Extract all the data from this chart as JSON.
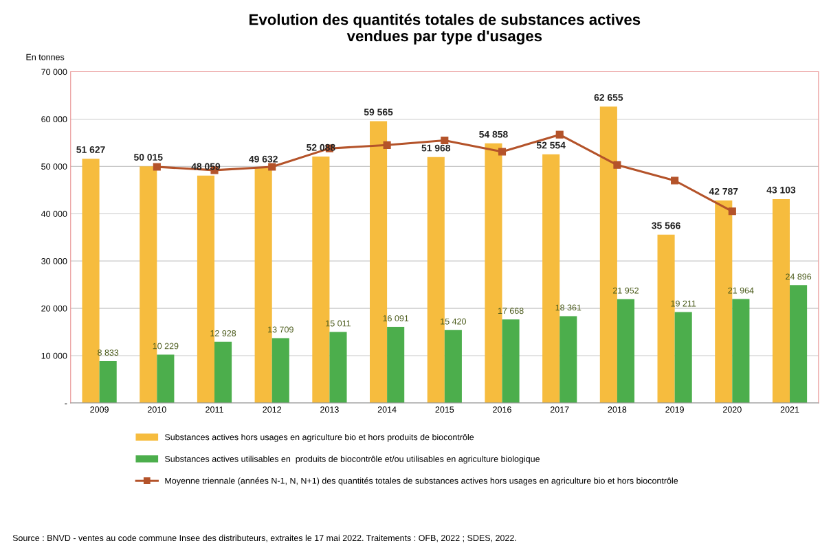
{
  "chart_data": {
    "type": "bar",
    "title": "Evolution des quantités totales de substances actives\nvendues par type d'usages",
    "ylabel": "En tonnes",
    "categories": [
      "2009",
      "2010",
      "2011",
      "2012",
      "2013",
      "2014",
      "2015",
      "2016",
      "2017",
      "2018",
      "2019",
      "2020",
      "2021"
    ],
    "series": [
      {
        "name": "Substances actives hors usages en agriculture bio et hors produits de biocontrôle",
        "color": "#f6bc3e",
        "values": [
          51627,
          50015,
          48059,
          49632,
          52088,
          59565,
          51968,
          54858,
          52554,
          62655,
          35566,
          42787,
          43103
        ],
        "value_labels": [
          "51 627",
          "50 015",
          "48 059",
          "49 632",
          "52 088",
          "59 565",
          "51 968",
          "54 858",
          "52 554",
          "62 655",
          "35 566",
          "42 787",
          "43 103"
        ]
      },
      {
        "name": "Substances actives utilisables en  produits de biocontrôle et/ou utilisables en agriculture biologique",
        "color": "#4cae4c",
        "values": [
          8833,
          10229,
          12928,
          13709,
          15011,
          16091,
          15420,
          17668,
          18361,
          21952,
          19211,
          21964,
          24896
        ],
        "value_labels": [
          "8 833",
          "10 229",
          "12 928",
          "13 709",
          "15 011",
          "16 091",
          "15 420",
          "17 668",
          "18 361",
          "21 952",
          "19 211",
          "21 964",
          "24 896"
        ]
      },
      {
        "name": "Moyenne triennale (années N-1, N, N+1) des quantités totales de substances actives hors usages en agriculture bio et hors biocontrôle",
        "type": "line",
        "color": "#b4532a",
        "marker": "square",
        "values": [
          null,
          49900,
          49200,
          49900,
          53800,
          54500,
          55500,
          53100,
          56700,
          50300,
          47000,
          40500,
          null
        ]
      }
    ],
    "ylim": [
      0,
      70000
    ],
    "yticks": [
      {
        "value": 0,
        "label": "-"
      },
      {
        "value": 10000,
        "label": "10 000"
      },
      {
        "value": 20000,
        "label": "20 000"
      },
      {
        "value": 30000,
        "label": "30 000"
      },
      {
        "value": 40000,
        "label": "40 000"
      },
      {
        "value": 50000,
        "label": "50 000"
      },
      {
        "value": 60000,
        "label": "60 000"
      },
      {
        "value": 70000,
        "label": "70 000"
      }
    ],
    "grid": "y",
    "legend": "bottom",
    "annotations": [
      "Source : BNVD - ventes au code commune Insee des distributeurs, extraites le 17 mai 2022. Traitements : OFB, 2022 ; SDES, 2022."
    ]
  }
}
